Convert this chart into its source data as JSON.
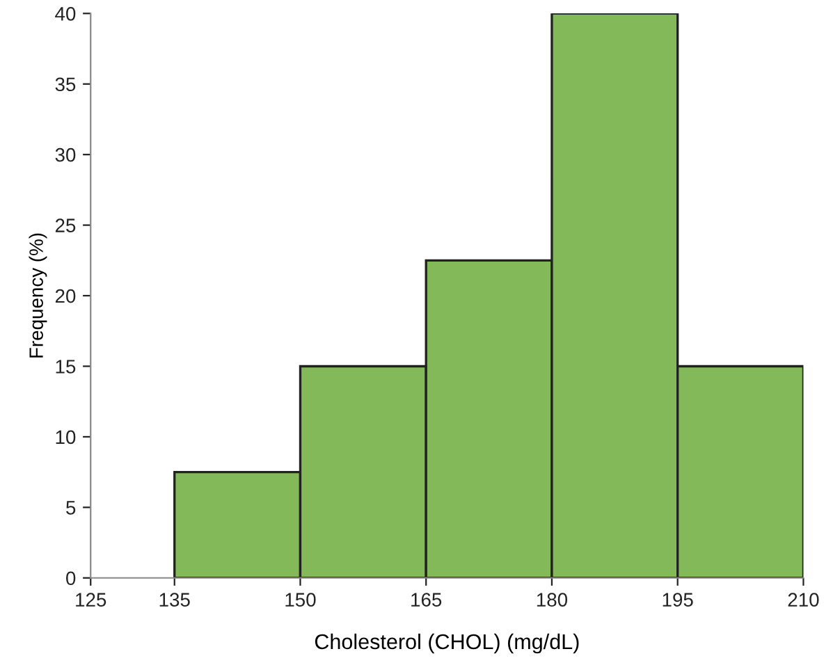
{
  "chart_data": {
    "type": "histogram",
    "xlabel": "Cholesterol (CHOL) (mg/dL)",
    "ylabel": "Frequency (%)",
    "bins": [
      135,
      150,
      165,
      180,
      195,
      210
    ],
    "values": [
      7.5,
      15,
      22.5,
      40,
      15
    ],
    "color": "#84b95a",
    "xlim": [
      125,
      210
    ],
    "xticks": [
      125,
      135,
      150,
      165,
      180,
      195,
      210
    ],
    "ylim": [
      0,
      40
    ],
    "yticks": [
      0,
      5,
      10,
      15,
      20,
      25,
      30,
      35,
      40
    ],
    "grid": false
  }
}
